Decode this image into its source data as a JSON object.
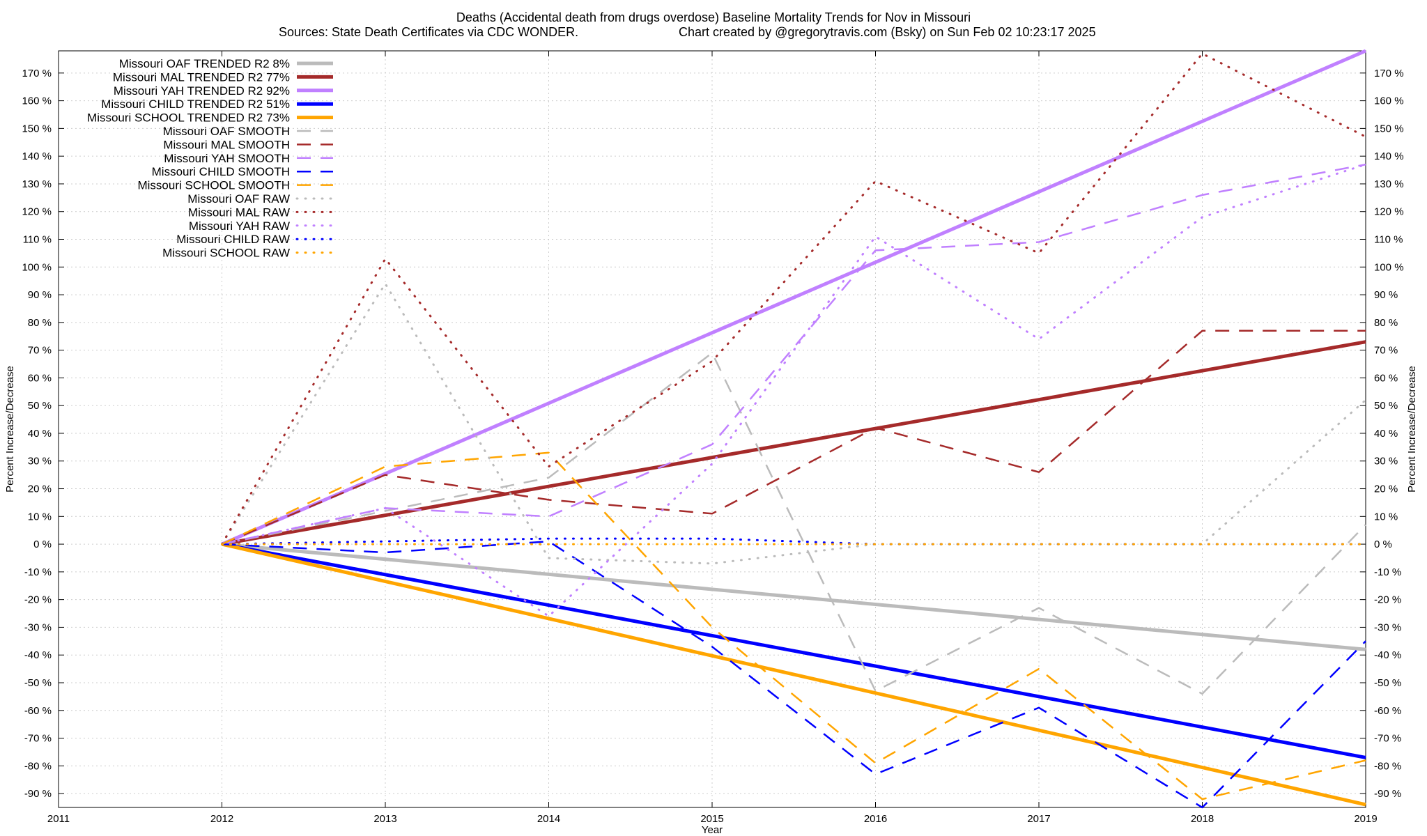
{
  "chart_data": {
    "type": "line",
    "title": "Deaths (Accidental death from drugs overdose)  Baseline Mortality Trends for Nov in Missouri",
    "subtitle_left": "Sources: State Death Certificates via CDC WONDER.",
    "subtitle_right": "Chart created by @gregorytravis.com (Bsky) on Sun Feb 02 10:23:17 2025",
    "xlabel": "Year",
    "ylabel_left": "Percent Increase/Decrease",
    "ylabel_right": "Percent Increase/Decrease",
    "xlim": [
      2011,
      2019
    ],
    "ylim": [
      -95,
      178
    ],
    "x_ticks": [
      "2011",
      "2012",
      "2013",
      "2014",
      "2015",
      "2016",
      "2017",
      "2018",
      "2019"
    ],
    "y_ticks": [
      "-90 %",
      "-80 %",
      "-70 %",
      "-60 %",
      "-50 %",
      "-40 %",
      "-30 %",
      "-20 %",
      "-10 %",
      "0 %",
      "10 %",
      "20 %",
      "30 %",
      "40 %",
      "50 %",
      "60 %",
      "70 %",
      "80 %",
      "90 %",
      "100 %",
      "110 %",
      "120 %",
      "130 %",
      "140 %",
      "150 %",
      "160 %",
      "170 %"
    ],
    "grid": true,
    "legend_position": "top-left",
    "series": [
      {
        "name": "Missouri OAF TRENDED R2  8%",
        "style": "solid",
        "color": "#bbbbbb",
        "x": [
          2012,
          2019
        ],
        "y": [
          0,
          -38
        ]
      },
      {
        "name": "Missouri MAL TRENDED R2  77%",
        "style": "solid",
        "color": "#a52a2a",
        "x": [
          2012,
          2019
        ],
        "y": [
          0,
          73
        ]
      },
      {
        "name": "Missouri YAH TRENDED R2  92%",
        "style": "solid",
        "color": "#c080ff",
        "x": [
          2012,
          2019
        ],
        "y": [
          0,
          178
        ]
      },
      {
        "name": "Missouri CHILD TRENDED R2  51%",
        "style": "solid",
        "color": "#0000ff",
        "x": [
          2012,
          2019
        ],
        "y": [
          0,
          -77
        ]
      },
      {
        "name": "Missouri SCHOOL TRENDED R2  73%",
        "style": "solid",
        "color": "#ffa500",
        "x": [
          2012,
          2019
        ],
        "y": [
          0,
          -94
        ]
      },
      {
        "name": "Missouri OAF SMOOTH",
        "style": "dash",
        "color": "#bbbbbb",
        "x": [
          2012,
          2013,
          2014,
          2015,
          2016,
          2017,
          2018,
          2019
        ],
        "y": [
          0,
          12,
          24,
          69,
          -53,
          -23,
          -54,
          7
        ]
      },
      {
        "name": "Missouri MAL SMOOTH",
        "style": "dash",
        "color": "#a52a2a",
        "x": [
          2012,
          2013,
          2014,
          2015,
          2016,
          2017,
          2018,
          2019
        ],
        "y": [
          0,
          25,
          16,
          11,
          42,
          26,
          77,
          77
        ]
      },
      {
        "name": "Missouri YAH SMOOTH",
        "style": "dash",
        "color": "#c080ff",
        "x": [
          2012,
          2013,
          2014,
          2015,
          2016,
          2017,
          2018,
          2019
        ],
        "y": [
          0,
          13,
          10,
          36,
          106,
          109,
          126,
          137
        ]
      },
      {
        "name": "Missouri CHILD SMOOTH",
        "style": "dash",
        "color": "#0000ff",
        "x": [
          2012,
          2013,
          2014,
          2015,
          2016,
          2017,
          2018,
          2019
        ],
        "y": [
          0,
          -3,
          1,
          -37,
          -83,
          -59,
          -95,
          -35
        ]
      },
      {
        "name": "Missouri SCHOOL SMOOTH",
        "style": "dash",
        "color": "#ffa500",
        "x": [
          2012,
          2013,
          2014,
          2015,
          2016,
          2017,
          2018,
          2019
        ],
        "y": [
          0,
          28,
          33,
          -30,
          -79,
          -45,
          -92,
          -78
        ]
      },
      {
        "name": "Missouri OAF RAW",
        "style": "dot",
        "color": "#bbbbbb",
        "x": [
          2012,
          2013,
          2014,
          2015,
          2016,
          2017,
          2018,
          2019
        ],
        "y": [
          0,
          94,
          -5,
          -7,
          0,
          0,
          0,
          52
        ]
      },
      {
        "name": "Missouri MAL RAW",
        "style": "dot",
        "color": "#a52a2a",
        "x": [
          2012,
          2013,
          2014,
          2015,
          2016,
          2017,
          2018,
          2019
        ],
        "y": [
          0,
          103,
          28,
          66,
          131,
          105,
          177,
          147
        ]
      },
      {
        "name": "Missouri YAH RAW",
        "style": "dot",
        "color": "#c080ff",
        "x": [
          2012,
          2013,
          2014,
          2015,
          2016,
          2017,
          2018,
          2019
        ],
        "y": [
          0,
          13,
          -26,
          29,
          111,
          74,
          118,
          137
        ]
      },
      {
        "name": "Missouri CHILD RAW",
        "style": "dot",
        "color": "#0000ff",
        "x": [
          2012,
          2013,
          2014,
          2015,
          2016,
          2017,
          2018,
          2019
        ],
        "y": [
          0,
          1,
          2,
          2,
          0,
          0,
          0,
          0
        ]
      },
      {
        "name": "Missouri SCHOOL RAW",
        "style": "dot",
        "color": "#ffa500",
        "x": [
          2012,
          2013,
          2014,
          2015,
          2016,
          2017,
          2018,
          2019
        ],
        "y": [
          0,
          0,
          0,
          0,
          0,
          0,
          0,
          0
        ]
      }
    ]
  }
}
